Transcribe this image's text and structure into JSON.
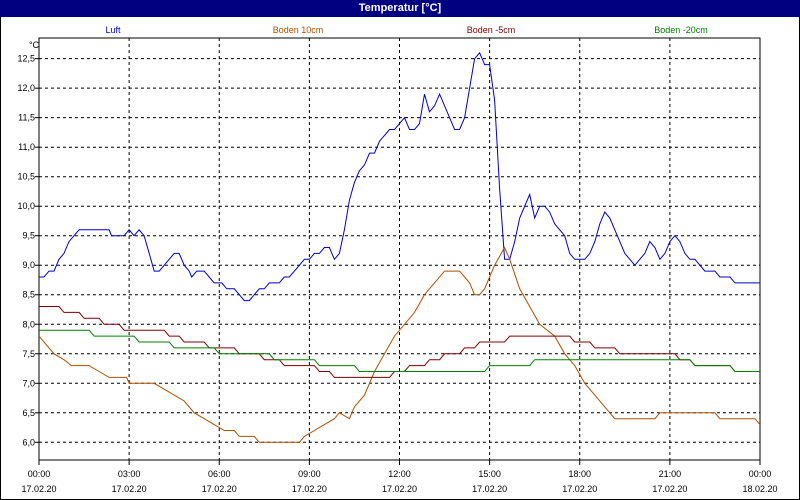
{
  "chart_data": {
    "type": "line",
    "title": "Temperatur [°C]",
    "ylabel": "°C",
    "ylim": [
      5.7,
      12.85
    ],
    "xlim": [
      "17.02.20 00:00",
      "18.02.20 00:00"
    ],
    "y_ticks": [
      "6,0",
      "6,5",
      "7,0",
      "7,5",
      "8,0",
      "8,5",
      "9,0",
      "9,5",
      "10,0",
      "10,5",
      "11,0",
      "11,5",
      "12,0",
      "12,5"
    ],
    "x_ticks": [
      {
        "time": "00:00",
        "date": "17.02.20"
      },
      {
        "time": "03:00",
        "date": "17.02.20"
      },
      {
        "time": "06:00",
        "date": "17.02.20"
      },
      {
        "time": "09:00",
        "date": "17.02.20"
      },
      {
        "time": "12:00",
        "date": "17.02.20"
      },
      {
        "time": "15:00",
        "date": "17.02.20"
      },
      {
        "time": "18:00",
        "date": "17.02.20"
      },
      {
        "time": "21:00",
        "date": "17.02.20"
      },
      {
        "time": "00:00",
        "date": "18.02.20"
      }
    ],
    "grid": true,
    "legend_position": "top",
    "series": [
      {
        "name": "Luft",
        "color": "#0000c0",
        "points": [
          [
            0,
            8.8
          ],
          [
            0.2,
            8.8
          ],
          [
            0.4,
            8.9
          ],
          [
            0.6,
            8.9
          ],
          [
            0.8,
            9.1
          ],
          [
            1.0,
            9.2
          ],
          [
            1.2,
            9.4
          ],
          [
            1.4,
            9.5
          ],
          [
            1.6,
            9.6
          ],
          [
            2.0,
            9.6
          ],
          [
            2.4,
            9.6
          ],
          [
            2.8,
            9.6
          ],
          [
            2.9,
            9.5
          ],
          [
            3.4,
            9.5
          ],
          [
            3.6,
            9.6
          ],
          [
            3.8,
            9.5
          ],
          [
            4.0,
            9.6
          ],
          [
            4.2,
            9.5
          ],
          [
            4.4,
            9.2
          ],
          [
            4.6,
            8.9
          ],
          [
            4.8,
            8.9
          ],
          [
            5.0,
            9.0
          ],
          [
            5.2,
            9.1
          ],
          [
            5.4,
            9.2
          ],
          [
            5.6,
            9.2
          ],
          [
            5.8,
            9.0
          ],
          [
            6.0,
            8.9
          ],
          [
            6.1,
            8.8
          ],
          [
            6.3,
            8.9
          ],
          [
            6.6,
            8.9
          ],
          [
            6.8,
            8.8
          ],
          [
            7.0,
            8.7
          ],
          [
            7.3,
            8.7
          ],
          [
            7.5,
            8.6
          ],
          [
            7.8,
            8.6
          ],
          [
            8.0,
            8.5
          ],
          [
            8.2,
            8.4
          ],
          [
            8.4,
            8.4
          ],
          [
            8.6,
            8.5
          ],
          [
            8.8,
            8.6
          ],
          [
            9.0,
            8.6
          ],
          [
            9.2,
            8.7
          ],
          [
            9.6,
            8.7
          ],
          [
            9.8,
            8.8
          ],
          [
            10.0,
            8.8
          ],
          [
            10.2,
            8.9
          ],
          [
            10.4,
            9.0
          ],
          [
            10.6,
            9.1
          ],
          [
            10.8,
            9.1
          ],
          [
            11.0,
            9.2
          ],
          [
            11.2,
            9.2
          ],
          [
            11.4,
            9.3
          ],
          [
            11.6,
            9.3
          ],
          [
            11.8,
            9.1
          ],
          [
            12.0,
            9.2
          ],
          [
            12.2,
            9.6
          ],
          [
            12.4,
            10.1
          ],
          [
            12.6,
            10.4
          ],
          [
            12.8,
            10.6
          ],
          [
            13.0,
            10.7
          ],
          [
            13.2,
            10.9
          ],
          [
            13.4,
            10.9
          ],
          [
            13.6,
            11.1
          ],
          [
            13.8,
            11.2
          ],
          [
            14.0,
            11.3
          ],
          [
            14.2,
            11.3
          ],
          [
            14.4,
            11.4
          ],
          [
            14.6,
            11.5
          ],
          [
            14.8,
            11.3
          ],
          [
            15.0,
            11.3
          ],
          [
            15.2,
            11.4
          ],
          [
            15.4,
            11.9
          ],
          [
            15.6,
            11.6
          ],
          [
            15.8,
            11.7
          ],
          [
            16.0,
            11.9
          ],
          [
            16.2,
            11.7
          ],
          [
            16.4,
            11.5
          ],
          [
            16.6,
            11.3
          ],
          [
            16.8,
            11.3
          ],
          [
            17.0,
            11.5
          ],
          [
            17.2,
            12.0
          ],
          [
            17.4,
            12.5
          ],
          [
            17.6,
            12.6
          ],
          [
            17.8,
            12.4
          ],
          [
            18.0,
            12.4
          ],
          [
            18.2,
            11.8
          ],
          [
            18.4,
            10.3
          ],
          [
            18.6,
            9.1
          ],
          [
            18.8,
            9.1
          ],
          [
            19.0,
            9.4
          ],
          [
            19.2,
            9.8
          ],
          [
            19.4,
            10.0
          ],
          [
            19.6,
            10.2
          ],
          [
            19.8,
            9.8
          ],
          [
            20.0,
            10.0
          ],
          [
            20.2,
            10.0
          ],
          [
            20.4,
            9.9
          ],
          [
            20.6,
            9.7
          ],
          [
            20.8,
            9.6
          ],
          [
            21.0,
            9.5
          ],
          [
            21.2,
            9.2
          ],
          [
            21.4,
            9.1
          ],
          [
            21.6,
            9.1
          ],
          [
            21.8,
            9.1
          ],
          [
            22.0,
            9.2
          ],
          [
            22.2,
            9.4
          ],
          [
            22.4,
            9.7
          ],
          [
            22.6,
            9.9
          ],
          [
            22.8,
            9.8
          ],
          [
            23.0,
            9.6
          ],
          [
            23.2,
            9.4
          ],
          [
            23.4,
            9.2
          ],
          [
            23.6,
            9.1
          ],
          [
            23.8,
            9.0
          ],
          [
            24.0,
            9.1
          ],
          [
            24.2,
            9.2
          ],
          [
            24.4,
            9.4
          ],
          [
            24.6,
            9.3
          ],
          [
            24.8,
            9.1
          ],
          [
            25.0,
            9.2
          ],
          [
            25.2,
            9.4
          ],
          [
            25.4,
            9.5
          ],
          [
            25.6,
            9.4
          ],
          [
            25.8,
            9.2
          ],
          [
            26.0,
            9.1
          ],
          [
            26.2,
            9.1
          ],
          [
            26.4,
            9.0
          ],
          [
            26.6,
            8.9
          ],
          [
            26.8,
            8.9
          ],
          [
            27.0,
            8.9
          ],
          [
            27.2,
            8.8
          ],
          [
            27.6,
            8.8
          ],
          [
            27.8,
            8.7
          ],
          [
            28.8,
            8.7
          ]
        ]
      },
      {
        "name": "Boden 10cm",
        "color": "#b05000",
        "points": [
          [
            0,
            7.8
          ],
          [
            0.6,
            7.5
          ],
          [
            1.0,
            7.4
          ],
          [
            1.3,
            7.3
          ],
          [
            2.0,
            7.3
          ],
          [
            2.4,
            7.2
          ],
          [
            2.8,
            7.1
          ],
          [
            3.5,
            7.1
          ],
          [
            3.6,
            7.0
          ],
          [
            4.6,
            7.0
          ],
          [
            5.0,
            6.9
          ],
          [
            5.4,
            6.8
          ],
          [
            5.8,
            6.7
          ],
          [
            6.2,
            6.5
          ],
          [
            6.6,
            6.4
          ],
          [
            7.0,
            6.3
          ],
          [
            7.4,
            6.2
          ],
          [
            7.8,
            6.2
          ],
          [
            8.0,
            6.1
          ],
          [
            8.6,
            6.1
          ],
          [
            8.8,
            6.0
          ],
          [
            9.2,
            6.0
          ],
          [
            10.4,
            6.0
          ],
          [
            10.6,
            6.1
          ],
          [
            11.0,
            6.2
          ],
          [
            11.4,
            6.3
          ],
          [
            11.8,
            6.4
          ],
          [
            12.0,
            6.5
          ],
          [
            12.4,
            6.4
          ],
          [
            12.6,
            6.6
          ],
          [
            13.0,
            6.8
          ],
          [
            13.4,
            7.2
          ],
          [
            13.8,
            7.5
          ],
          [
            14.2,
            7.8
          ],
          [
            14.6,
            8.0
          ],
          [
            15.0,
            8.2
          ],
          [
            15.4,
            8.5
          ],
          [
            15.8,
            8.7
          ],
          [
            16.2,
            8.9
          ],
          [
            16.8,
            8.9
          ],
          [
            17.0,
            8.8
          ],
          [
            17.2,
            8.7
          ],
          [
            17.4,
            8.5
          ],
          [
            17.6,
            8.5
          ],
          [
            17.8,
            8.6
          ],
          [
            18.0,
            8.8
          ],
          [
            18.2,
            9.0
          ],
          [
            18.6,
            9.3
          ],
          [
            18.8,
            9.1
          ],
          [
            19.2,
            8.6
          ],
          [
            19.6,
            8.3
          ],
          [
            20.0,
            8.0
          ],
          [
            20.6,
            7.8
          ],
          [
            21.0,
            7.5
          ],
          [
            21.4,
            7.3
          ],
          [
            21.8,
            7.0
          ],
          [
            22.2,
            6.8
          ],
          [
            22.6,
            6.6
          ],
          [
            23.0,
            6.4
          ],
          [
            24.6,
            6.4
          ],
          [
            24.8,
            6.5
          ],
          [
            27.0,
            6.5
          ],
          [
            27.2,
            6.4
          ],
          [
            28.6,
            6.4
          ],
          [
            28.8,
            6.3
          ]
        ]
      },
      {
        "name": "Boden -5cm",
        "color": "#800000",
        "points": [
          [
            0,
            8.3
          ],
          [
            0.8,
            8.3
          ],
          [
            1.0,
            8.2
          ],
          [
            1.6,
            8.2
          ],
          [
            1.8,
            8.1
          ],
          [
            2.4,
            8.1
          ],
          [
            2.6,
            8.0
          ],
          [
            3.2,
            8.0
          ],
          [
            3.4,
            7.9
          ],
          [
            5.0,
            7.9
          ],
          [
            5.2,
            7.8
          ],
          [
            5.6,
            7.8
          ],
          [
            5.8,
            7.7
          ],
          [
            6.6,
            7.7
          ],
          [
            6.8,
            7.6
          ],
          [
            7.8,
            7.6
          ],
          [
            8.0,
            7.5
          ],
          [
            8.8,
            7.5
          ],
          [
            9.0,
            7.4
          ],
          [
            9.6,
            7.4
          ],
          [
            9.8,
            7.3
          ],
          [
            11.0,
            7.3
          ],
          [
            11.2,
            7.2
          ],
          [
            11.6,
            7.2
          ],
          [
            11.8,
            7.1
          ],
          [
            14.0,
            7.1
          ],
          [
            14.2,
            7.2
          ],
          [
            14.6,
            7.2
          ],
          [
            14.8,
            7.3
          ],
          [
            15.4,
            7.3
          ],
          [
            15.6,
            7.4
          ],
          [
            16.0,
            7.4
          ],
          [
            16.2,
            7.5
          ],
          [
            16.8,
            7.5
          ],
          [
            17.0,
            7.6
          ],
          [
            17.4,
            7.6
          ],
          [
            17.6,
            7.7
          ],
          [
            18.6,
            7.7
          ],
          [
            18.8,
            7.8
          ],
          [
            21.2,
            7.8
          ],
          [
            21.4,
            7.7
          ],
          [
            22.0,
            7.7
          ],
          [
            22.2,
            7.6
          ],
          [
            23.0,
            7.6
          ],
          [
            23.2,
            7.5
          ],
          [
            25.4,
            7.5
          ],
          [
            25.6,
            7.4
          ],
          [
            26.0,
            7.4
          ],
          [
            26.2,
            7.3
          ],
          [
            27.6,
            7.3
          ],
          [
            27.8,
            7.2
          ],
          [
            28.8,
            7.2
          ]
        ]
      },
      {
        "name": "Boden -20cm",
        "color": "#008000",
        "points": [
          [
            0,
            7.9
          ],
          [
            2.0,
            7.9
          ],
          [
            2.2,
            7.8
          ],
          [
            3.8,
            7.8
          ],
          [
            4.0,
            7.7
          ],
          [
            5.2,
            7.7
          ],
          [
            5.4,
            7.6
          ],
          [
            7.0,
            7.6
          ],
          [
            7.2,
            7.5
          ],
          [
            9.2,
            7.5
          ],
          [
            9.4,
            7.4
          ],
          [
            11.0,
            7.4
          ],
          [
            11.2,
            7.3
          ],
          [
            12.6,
            7.3
          ],
          [
            12.8,
            7.2
          ],
          [
            17.8,
            7.2
          ],
          [
            18.0,
            7.3
          ],
          [
            19.6,
            7.3
          ],
          [
            19.8,
            7.4
          ],
          [
            26.0,
            7.4
          ],
          [
            26.2,
            7.3
          ],
          [
            27.6,
            7.3
          ],
          [
            27.8,
            7.2
          ],
          [
            28.8,
            7.2
          ]
        ]
      }
    ]
  }
}
